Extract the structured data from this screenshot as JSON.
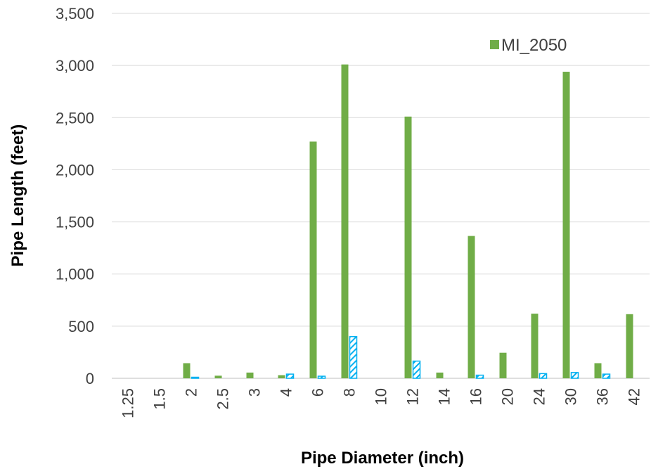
{
  "chart_data": {
    "type": "bar",
    "xlabel": "Pipe Diameter (inch)",
    "ylabel": "Pipe Length (feet)",
    "ylim": [
      0,
      3500
    ],
    "yticks": [
      "0",
      "500",
      "1,000",
      "1,500",
      "2,000",
      "2,500",
      "3,000",
      "3,500"
    ],
    "categories": [
      "1.25",
      "1.5",
      "2",
      "2.5",
      "3",
      "4",
      "6",
      "8",
      "10",
      "12",
      "14",
      "16",
      "20",
      "24",
      "30",
      "36",
      "42"
    ],
    "grid": "horizontal",
    "legend_position": "top-right",
    "series": [
      {
        "name": "MI_2050",
        "color": "#70ad47",
        "fill": "solid",
        "values": [
          0,
          0,
          145,
          25,
          55,
          30,
          2270,
          3010,
          0,
          2510,
          55,
          1365,
          245,
          620,
          2940,
          145,
          615
        ]
      },
      {
        "color": "#00b0f0",
        "fill": "hatched",
        "values": [
          0,
          0,
          10,
          0,
          0,
          40,
          20,
          400,
          0,
          165,
          0,
          30,
          0,
          45,
          55,
          40,
          0
        ]
      }
    ]
  }
}
